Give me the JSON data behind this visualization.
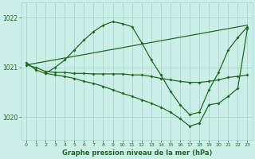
{
  "background_color": "#cceee8",
  "grid_color": "#a8d8d0",
  "line_color": "#1a6e1a",
  "title": "Graphe pression niveau de la mer (hPa)",
  "ylabel_ticks": [
    1020,
    1021,
    1022
  ],
  "xlim": [
    -0.5,
    23.5
  ],
  "ylim": [
    1019.55,
    1022.3
  ],
  "series": [
    {
      "x": [
        0,
        1,
        2,
        3,
        4,
        5,
        6,
        7,
        8,
        9,
        10,
        11,
        12,
        13,
        14,
        15,
        16,
        17,
        18,
        19,
        20,
        21,
        22,
        23
      ],
      "y": [
        1021.1,
        1020.95,
        1020.88,
        1021.0,
        1021.15,
        1021.35,
        1021.55,
        1021.72,
        1021.85,
        1021.92,
        1021.88,
        1021.82,
        1021.5,
        1021.15,
        1020.85,
        1020.52,
        1020.25,
        1020.05,
        1020.1,
        1020.55,
        1020.9,
        1021.35,
        1021.6,
        1021.82
      ]
    },
    {
      "x": [
        0,
        1,
        2,
        3,
        4,
        5,
        6,
        7,
        8,
        9,
        10,
        11,
        12,
        13,
        14,
        15,
        16,
        17,
        18,
        19,
        20,
        21,
        22,
        23
      ],
      "y": [
        1021.05,
        1021.0,
        1020.92,
        1020.9,
        1020.9,
        1020.88,
        1020.88,
        1020.87,
        1020.87,
        1020.87,
        1020.87,
        1020.85,
        1020.85,
        1020.82,
        1020.78,
        1020.75,
        1020.72,
        1020.7,
        1020.7,
        1020.72,
        1020.75,
        1020.8,
        1020.82,
        1020.85
      ]
    },
    {
      "x": [
        0,
        23
      ],
      "y": [
        1021.05,
        1021.85
      ]
    },
    {
      "x": [
        2,
        3,
        4,
        5,
        6,
        7,
        8,
        9,
        10,
        11,
        12,
        13,
        14,
        15,
        16,
        17,
        18,
        19,
        20,
        21,
        22,
        23
      ],
      "y": [
        1020.88,
        1020.85,
        1020.82,
        1020.78,
        1020.72,
        1020.68,
        1020.62,
        1020.55,
        1020.48,
        1020.42,
        1020.35,
        1020.28,
        1020.2,
        1020.1,
        1019.97,
        1019.82,
        1019.88,
        1020.25,
        1020.28,
        1020.42,
        1020.58,
        1021.78
      ]
    }
  ]
}
